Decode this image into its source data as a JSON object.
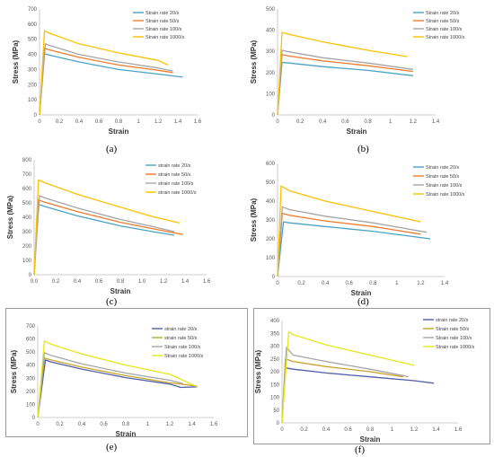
{
  "panels": [
    {
      "caption": "(a)",
      "chart_data": {
        "type": "line",
        "xlabel": "Strain",
        "ylabel": "Stress (MPa)",
        "xlim": [
          0,
          1.6
        ],
        "ylim": [
          0,
          700
        ],
        "xticks": [
          "0",
          "0.2",
          "0.4",
          "0.6",
          "0.8",
          "1",
          "1.2",
          "1.4",
          "1.6"
        ],
        "yticks": [
          "0",
          "100",
          "200",
          "300",
          "400",
          "500",
          "600",
          "700"
        ],
        "grid": false,
        "legend": "top-right",
        "series": [
          {
            "name": "Strain rate 20/s",
            "color": "#4aa3c4",
            "x": [
              0,
              0.05,
              0.1,
              0.4,
              0.8,
              1.2,
              1.45
            ],
            "y": [
              0,
              405,
              395,
              350,
              300,
              270,
              250
            ]
          },
          {
            "name": "Strain rate 50/s",
            "color": "#ed7d31",
            "x": [
              0,
              0.05,
              0.1,
              0.4,
              0.8,
              1.2,
              1.35
            ],
            "y": [
              0,
              440,
              430,
              380,
              330,
              295,
              280
            ]
          },
          {
            "name": "Strain rate 100/s",
            "color": "#a5a5a5",
            "x": [
              0,
              0.06,
              0.1,
              0.4,
              0.8,
              1.2,
              1.35
            ],
            "y": [
              0,
              470,
              460,
              400,
              350,
              310,
              290
            ]
          },
          {
            "name": "Strain rate 1000/s",
            "color": "#ffc000",
            "x": [
              0,
              0.05,
              0.1,
              0.4,
              0.8,
              1.2,
              1.3
            ],
            "y": [
              0,
              555,
              540,
              470,
              410,
              360,
              330
            ]
          }
        ]
      }
    },
    {
      "caption": "(b)",
      "chart_data": {
        "type": "line",
        "xlabel": "Strain",
        "ylabel": "Stress (MPa)",
        "xlim": [
          0,
          1.4
        ],
        "ylim": [
          0,
          500
        ],
        "xticks": [
          "0",
          "0.2",
          "0.4",
          "0.6",
          "0.8",
          "1",
          "1.2",
          "1.4"
        ],
        "yticks": [
          "0",
          "100",
          "200",
          "300",
          "400",
          "500"
        ],
        "grid": false,
        "legend": "top-right",
        "series": [
          {
            "name": "Strain rate 20/s",
            "color": "#4aa3c4",
            "x": [
              0,
              0.04,
              0.1,
              0.4,
              0.8,
              1.2
            ],
            "y": [
              0,
              248,
              245,
              228,
              210,
              185
            ]
          },
          {
            "name": "Strain rate 50/s",
            "color": "#ed7d31",
            "x": [
              0,
              0.04,
              0.1,
              0.4,
              0.8,
              1.2
            ],
            "y": [
              0,
              285,
              278,
              255,
              232,
              205
            ]
          },
          {
            "name": "Strain rate 100/s",
            "color": "#a5a5a5",
            "x": [
              0,
              0.04,
              0.1,
              0.4,
              0.8,
              1.2
            ],
            "y": [
              0,
              305,
              298,
              270,
              245,
              215
            ]
          },
          {
            "name": "Strain rate 1000/s",
            "color": "#ffc000",
            "x": [
              0,
              0.04,
              0.1,
              0.4,
              0.8,
              1.15
            ],
            "y": [
              0,
              390,
              380,
              345,
              305,
              275
            ]
          }
        ]
      }
    },
    {
      "caption": "(c)",
      "chart_data": {
        "type": "line",
        "xlabel": "Strain",
        "ylabel": "Stress (MPa)",
        "xlim": [
          0,
          1.6
        ],
        "ylim": [
          0,
          800
        ],
        "xticks": [
          "0.0",
          "0.2",
          "0.4",
          "0.6",
          "0.8",
          "1.0",
          "1.2",
          "1.4",
          "1.6"
        ],
        "yticks": [
          "0",
          "100",
          "200",
          "300",
          "400",
          "500",
          "600",
          "700",
          "800"
        ],
        "grid": false,
        "legend": "top-right",
        "series": [
          {
            "name": "strain rate 20/s",
            "color": "#4aa3c4",
            "x": [
              0,
              0.04,
              0.1,
              0.4,
              0.8,
              1.1,
              1.3
            ],
            "y": [
              0,
              490,
              475,
              410,
              340,
              300,
              275
            ]
          },
          {
            "name": "strain rate 50/s",
            "color": "#ed7d31",
            "x": [
              0,
              0.04,
              0.1,
              0.4,
              0.8,
              1.1,
              1.38
            ],
            "y": [
              0,
              520,
              505,
              440,
              365,
              320,
              280
            ]
          },
          {
            "name": "strain rate 100/s",
            "color": "#a5a5a5",
            "x": [
              0,
              0.05,
              0.1,
              0.4,
              0.8,
              1.1,
              1.3
            ],
            "y": [
              0,
              550,
              535,
              465,
              385,
              335,
              300
            ]
          },
          {
            "name": "strain rate 1000/s",
            "color": "#ffc000",
            "x": [
              0,
              0.04,
              0.1,
              0.4,
              0.8,
              1.1,
              1.35
            ],
            "y": [
              0,
              660,
              640,
              560,
              470,
              405,
              360
            ]
          }
        ]
      }
    },
    {
      "caption": "(d)",
      "chart_data": {
        "type": "line",
        "xlabel": "Strain",
        "ylabel": "Stress (MPa)",
        "xlim": [
          0,
          1.4
        ],
        "ylim": [
          0,
          600
        ],
        "xticks": [
          "0",
          "0.2",
          "0.4",
          "0.6",
          "0.8",
          "1",
          "1.2",
          "1.4"
        ],
        "yticks": [
          "0",
          "100",
          "200",
          "300",
          "400",
          "500",
          "600"
        ],
        "grid": false,
        "legend": "top-right",
        "series": [
          {
            "name": "Strain rate 20/s",
            "color": "#4aa3c4",
            "x": [
              0,
              0.05,
              0.1,
              0.4,
              0.8,
              1.28
            ],
            "y": [
              0,
              290,
              285,
              265,
              240,
              200
            ]
          },
          {
            "name": "Strain rate 50/s",
            "color": "#ed7d31",
            "x": [
              0,
              0.04,
              0.1,
              0.4,
              0.8,
              1.2
            ],
            "y": [
              0,
              335,
              325,
              295,
              265,
              225
            ]
          },
          {
            "name": "Strain rate 100/s",
            "color": "#a5a5a5",
            "x": [
              0,
              0.04,
              0.1,
              0.4,
              0.8,
              1.25
            ],
            "y": [
              0,
              370,
              355,
              320,
              285,
              235
            ]
          },
          {
            "name": "Strain rate 1000/s",
            "color": "#ffc000",
            "x": [
              0,
              0.03,
              0.1,
              0.4,
              0.8,
              1.2
            ],
            "y": [
              0,
              480,
              455,
              400,
              345,
              290
            ]
          }
        ]
      }
    },
    {
      "caption": "(e)",
      "chart_data": {
        "type": "line",
        "xlabel": "Strain",
        "ylabel": "Stress (MPa)",
        "xlim": [
          0,
          1.6
        ],
        "ylim": [
          0,
          700
        ],
        "xticks": [
          "0",
          "0.2",
          "0.4",
          "0.6",
          "0.8",
          "1",
          "1.2",
          "1.4",
          "1.6"
        ],
        "yticks": [
          "0",
          "100",
          "200",
          "300",
          "400",
          "500",
          "600",
          "700"
        ],
        "grid": false,
        "legend": "top-right",
        "series": [
          {
            "name": "strain rate 20/s",
            "color": "#4f5fa8",
            "x": [
              0,
              0.07,
              0.12,
              0.4,
              0.8,
              1.2,
              1.3,
              1.45
            ],
            "y": [
              0,
              440,
              425,
              370,
              305,
              255,
              230,
              235
            ]
          },
          {
            "name": "strain rate 50/s",
            "color": "#c9a227",
            "x": [
              0,
              0.06,
              0.12,
              0.4,
              0.8,
              1.2,
              1.45
            ],
            "y": [
              0,
              455,
              440,
              385,
              320,
              265,
              240
            ]
          },
          {
            "name": "Strain rate 100/s",
            "color": "#a5a5a5",
            "x": [
              0,
              0.06,
              0.12,
              0.4,
              0.8,
              1.2,
              1.32
            ],
            "y": [
              0,
              495,
              475,
              410,
              340,
              285,
              260
            ]
          },
          {
            "name": "Strain rate 1000/s",
            "color": "#e6e619",
            "x": [
              0,
              0.06,
              0.12,
              0.4,
              0.8,
              1.2,
              1.45
            ],
            "y": [
              0,
              585,
              560,
              485,
              400,
              330,
              235
            ]
          }
        ]
      }
    },
    {
      "caption": "(f)",
      "chart_data": {
        "type": "line",
        "xlabel": "Strain",
        "ylabel": "Stress (MPa)",
        "xlim": [
          0,
          1.6
        ],
        "ylim": [
          0,
          400
        ],
        "xticks": [
          "0",
          "0.2",
          "0.4",
          "0.6",
          "0.8",
          "1",
          "1.2",
          "1.4",
          "1.6"
        ],
        "yticks": [
          "0",
          "50",
          "100",
          "150",
          "200",
          "250",
          "300",
          "350",
          "400"
        ],
        "grid": false,
        "legend": "top-right",
        "series": [
          {
            "name": "strain rate 20/s",
            "color": "#4f5fa8",
            "x": [
              0,
              0.03,
              0.1,
              0.4,
              0.8,
              1.2,
              1.38
            ],
            "y": [
              0,
              215,
              210,
              195,
              180,
              165,
              155
            ]
          },
          {
            "name": "Strain rate 50/s",
            "color": "#c9a227",
            "x": [
              0,
              0.03,
              0.1,
              0.4,
              0.8,
              1.1
            ],
            "y": [
              0,
              250,
              240,
              220,
              200,
              180
            ]
          },
          {
            "name": "Strain rate 100/s",
            "color": "#a5a5a5",
            "x": [
              0,
              0.04,
              0.1,
              0.4,
              0.8,
              1.1,
              1.15
            ],
            "y": [
              0,
              295,
              265,
              240,
              210,
              185,
              180
            ]
          },
          {
            "name": "Strain rate 1000/s",
            "color": "#e6e619",
            "x": [
              0,
              0.06,
              0.1,
              0.4,
              0.8,
              1.2
            ],
            "y": [
              0,
              355,
              345,
              305,
              265,
              225
            ]
          }
        ]
      }
    }
  ]
}
